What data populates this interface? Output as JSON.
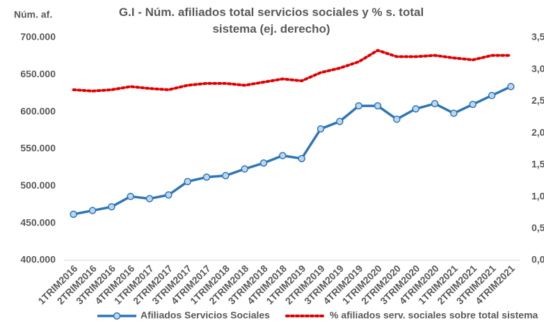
{
  "chart_data": {
    "type": "line",
    "title": "G.I - Núm. afiliados total servicios sociales y % s. total sistema (ej. derecho)",
    "y_label": "Núm. af.",
    "categories": [
      "1TRIM2016",
      "2TRIM2016",
      "3TRIM2016",
      "4TRIM2016",
      "1TRIM2017",
      "2TRIM2017",
      "3TRIM2017",
      "4TRIM2017",
      "1TRIM2018",
      "2TRIM2018",
      "3TRIM2018",
      "4TRIM2018",
      "1TRIM2019",
      "2TRIM2019",
      "3TRIM2019",
      "4TRIM2019",
      "1TRIM2020",
      "2TRIM2020",
      "3TRIM2020",
      "4TRIM2020",
      "1TRIM2021",
      "2TRIM2021",
      "3TRIM2021",
      "4TRIM2021"
    ],
    "series": [
      {
        "name": "Afiliados Servicios Sociales",
        "color": "#2e75b6",
        "values": [
          462000,
          467000,
          472000,
          486000,
          483000,
          488000,
          506000,
          512000,
          514000,
          523000,
          531000,
          541000,
          537000,
          577000,
          587000,
          608000,
          608000,
          590000,
          604000,
          611000,
          598000,
          610000,
          622000,
          634000
        ]
      },
      {
        "name": "% afiliados serv. sociales sobre total sistema",
        "color": "#e00000",
        "axis": "y2",
        "values": [
          2.68,
          2.66,
          2.68,
          2.73,
          2.7,
          2.68,
          2.75,
          2.78,
          2.78,
          2.75,
          2.8,
          2.85,
          2.82,
          2.95,
          3.02,
          3.12,
          3.3,
          3.2,
          3.2,
          3.22,
          3.18,
          3.15,
          3.22,
          3.22
        ]
      }
    ],
    "ylim": [
      400000,
      700000
    ],
    "yticks": [
      {
        "value": 400000,
        "label": "400.000"
      },
      {
        "value": 450000,
        "label": "450.000"
      },
      {
        "value": 500000,
        "label": "500.000"
      },
      {
        "value": 550000,
        "label": "550.000"
      },
      {
        "value": 600000,
        "label": "600.000"
      },
      {
        "value": 650000,
        "label": "650.000"
      },
      {
        "value": 700000,
        "label": "700.000"
      }
    ],
    "y2lim": [
      0,
      3.5
    ],
    "y2ticks": [
      {
        "value": 0,
        "label": "0,0"
      },
      {
        "value": 0.5,
        "label": "0,5"
      },
      {
        "value": 1,
        "label": "1,0"
      },
      {
        "value": 1.5,
        "label": "1,5"
      },
      {
        "value": 2,
        "label": "2,0"
      },
      {
        "value": 2.5,
        "label": "2,5"
      },
      {
        "value": 3,
        "label": "3,0"
      },
      {
        "value": 3.5,
        "label": "3,5"
      }
    ],
    "grid": false,
    "legend": "bottom"
  }
}
